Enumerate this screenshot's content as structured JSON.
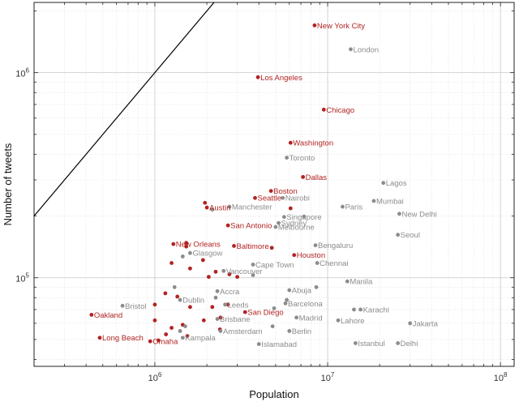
{
  "chart_data": {
    "type": "scatter",
    "title": "",
    "xlabel": "Population",
    "ylabel": "Number of tweets",
    "xscale": "log",
    "yscale": "log",
    "xlim": [
      200000,
      120000000
    ],
    "ylim": [
      37000,
      2200000
    ],
    "grid": true,
    "x_ticks": [
      {
        "value": 1000000,
        "base": "10",
        "exp": "6"
      },
      {
        "value": 10000000,
        "base": "10",
        "exp": "7"
      },
      {
        "value": 100000000,
        "base": "10",
        "exp": "8"
      }
    ],
    "y_ticks": [
      {
        "value": 100000,
        "base": "10",
        "exp": "5"
      },
      {
        "value": 1000000,
        "base": "10",
        "exp": "6"
      }
    ],
    "reference_line": {
      "type": "y=x",
      "color": "#000000"
    },
    "colors": {
      "us": "#b22222",
      "world": "#8c8c8c",
      "label_us": "#b22222",
      "label_world": "#8c8c8c"
    },
    "series": [
      {
        "group": "us",
        "points": [
          {
            "label": "New York City",
            "x": 8400000,
            "y": 1700000
          },
          {
            "label": "Los Angeles",
            "x": 3950000,
            "y": 950000
          },
          {
            "label": "Chicago",
            "x": 9500000,
            "y": 660000
          },
          {
            "label": "Washington",
            "x": 6100000,
            "y": 455000
          },
          {
            "label": "Dallas",
            "x": 7200000,
            "y": 310000
          },
          {
            "label": "Boston",
            "x": 4700000,
            "y": 265000
          },
          {
            "label": "Seattle",
            "x": 3800000,
            "y": 245000
          },
          {
            "label": "Austin",
            "x": 2000000,
            "y": 220000
          },
          {
            "label": "San Antonio",
            "x": 2650000,
            "y": 180000
          },
          {
            "label": "New Orleans",
            "x": 1280000,
            "y": 146000
          },
          {
            "label": "Baltimore",
            "x": 2870000,
            "y": 143000
          },
          {
            "label": "Houston",
            "x": 6400000,
            "y": 129000
          },
          {
            "label": "San Diego",
            "x": 3330000,
            "y": 68000
          },
          {
            "label": "Oakland",
            "x": 430000,
            "y": 66000
          },
          {
            "label": "Long Beach",
            "x": 480000,
            "y": 51000
          },
          {
            "label": "Omaha",
            "x": 940000,
            "y": 49000
          },
          {
            "label": "",
            "x": 1950000,
            "y": 232000
          },
          {
            "label": "",
            "x": 6100000,
            "y": 218000
          },
          {
            "label": "",
            "x": 4750000,
            "y": 140000
          },
          {
            "label": "",
            "x": 1520000,
            "y": 148000
          },
          {
            "label": "",
            "x": 1520000,
            "y": 142000
          },
          {
            "label": "",
            "x": 1900000,
            "y": 122000
          },
          {
            "label": "",
            "x": 1250000,
            "y": 118000
          },
          {
            "label": "",
            "x": 1600000,
            "y": 111000
          },
          {
            "label": "",
            "x": 2250000,
            "y": 107000
          },
          {
            "label": "",
            "x": 2050000,
            "y": 101000
          },
          {
            "label": "",
            "x": 2700000,
            "y": 104000
          },
          {
            "label": "",
            "x": 3000000,
            "y": 101000
          },
          {
            "label": "",
            "x": 1150000,
            "y": 84000
          },
          {
            "label": "",
            "x": 1350000,
            "y": 81000
          },
          {
            "label": "",
            "x": 1000000,
            "y": 74000
          },
          {
            "label": "",
            "x": 1600000,
            "y": 72000
          },
          {
            "label": "",
            "x": 2150000,
            "y": 72000
          },
          {
            "label": "",
            "x": 2650000,
            "y": 74000
          },
          {
            "label": "",
            "x": 2400000,
            "y": 64000
          },
          {
            "label": "",
            "x": 1000000,
            "y": 62000
          },
          {
            "label": "",
            "x": 1250000,
            "y": 57000
          },
          {
            "label": "",
            "x": 1450000,
            "y": 59000
          },
          {
            "label": "",
            "x": 1920000,
            "y": 62000
          },
          {
            "label": "",
            "x": 2380000,
            "y": 56000
          },
          {
            "label": "",
            "x": 1160000,
            "y": 53000
          },
          {
            "label": "",
            "x": 1540000,
            "y": 52000
          },
          {
            "label": "",
            "x": 1050000,
            "y": 49500
          }
        ]
      },
      {
        "group": "world",
        "points": [
          {
            "label": "London",
            "x": 13600000,
            "y": 1300000
          },
          {
            "label": "Toronto",
            "x": 5800000,
            "y": 385000
          },
          {
            "label": "Lagos",
            "x": 21000000,
            "y": 290000
          },
          {
            "label": "Nairobi",
            "x": 5500000,
            "y": 245000
          },
          {
            "label": "Mumbai",
            "x": 18500000,
            "y": 237000
          },
          {
            "label": "Manchester",
            "x": 2700000,
            "y": 222000
          },
          {
            "label": "Paris",
            "x": 12200000,
            "y": 222000
          },
          {
            "label": "New Delhi",
            "x": 26000000,
            "y": 205000
          },
          {
            "label": "Singapore",
            "x": 5600000,
            "y": 198000
          },
          {
            "label": "Sydney",
            "x": 5200000,
            "y": 185000
          },
          {
            "label": "Melbourne",
            "x": 5000000,
            "y": 177000
          },
          {
            "label": "Seoul",
            "x": 25500000,
            "y": 162000
          },
          {
            "label": "Glasgow",
            "x": 1600000,
            "y": 132000
          },
          {
            "label": "Bengaluru",
            "x": 8500000,
            "y": 144000
          },
          {
            "label": "Cape Town",
            "x": 3700000,
            "y": 116000
          },
          {
            "label": "Chennai",
            "x": 8700000,
            "y": 118000
          },
          {
            "label": "Vancouver",
            "x": 2500000,
            "y": 108000
          },
          {
            "label": "Manila",
            "x": 13000000,
            "y": 96000
          },
          {
            "label": "Abuja",
            "x": 6000000,
            "y": 87000
          },
          {
            "label": "Accra",
            "x": 2300000,
            "y": 86000
          },
          {
            "label": "Dublin",
            "x": 1400000,
            "y": 78000
          },
          {
            "label": "Bristol",
            "x": 650000,
            "y": 73000
          },
          {
            "label": "Leeds",
            "x": 2550000,
            "y": 74000
          },
          {
            "label": "Barcelona",
            "x": 5700000,
            "y": 75000
          },
          {
            "label": "Karachi",
            "x": 15500000,
            "y": 70000
          },
          {
            "label": "Madrid",
            "x": 6600000,
            "y": 64000
          },
          {
            "label": "Brisbane",
            "x": 2300000,
            "y": 63000
          },
          {
            "label": "Lahore",
            "x": 11500000,
            "y": 62000
          },
          {
            "label": "Jakarta",
            "x": 30000000,
            "y": 60000
          },
          {
            "label": "Amsterdam",
            "x": 2400000,
            "y": 55000
          },
          {
            "label": "Berlin",
            "x": 6000000,
            "y": 55000
          },
          {
            "label": "Kampala",
            "x": 1450000,
            "y": 51000
          },
          {
            "label": "Istanbul",
            "x": 14500000,
            "y": 48000
          },
          {
            "label": "Delhi",
            "x": 25500000,
            "y": 48000
          },
          {
            "label": "Islamabad",
            "x": 4000000,
            "y": 47500
          },
          {
            "label": "",
            "x": 2150000,
            "y": 215000
          },
          {
            "label": "",
            "x": 7300000,
            "y": 199000
          },
          {
            "label": "",
            "x": 1450000,
            "y": 127000
          },
          {
            "label": "",
            "x": 3700000,
            "y": 103000
          },
          {
            "label": "",
            "x": 1300000,
            "y": 90000
          },
          {
            "label": "",
            "x": 8600000,
            "y": 90000
          },
          {
            "label": "",
            "x": 2250000,
            "y": 80000
          },
          {
            "label": "",
            "x": 5800000,
            "y": 78000
          },
          {
            "label": "",
            "x": 4900000,
            "y": 71000
          },
          {
            "label": "",
            "x": 14200000,
            "y": 70000
          },
          {
            "label": "",
            "x": 1500000,
            "y": 58000
          },
          {
            "label": "",
            "x": 1400000,
            "y": 55000
          },
          {
            "label": "",
            "x": 4800000,
            "y": 58000
          }
        ]
      }
    ]
  }
}
